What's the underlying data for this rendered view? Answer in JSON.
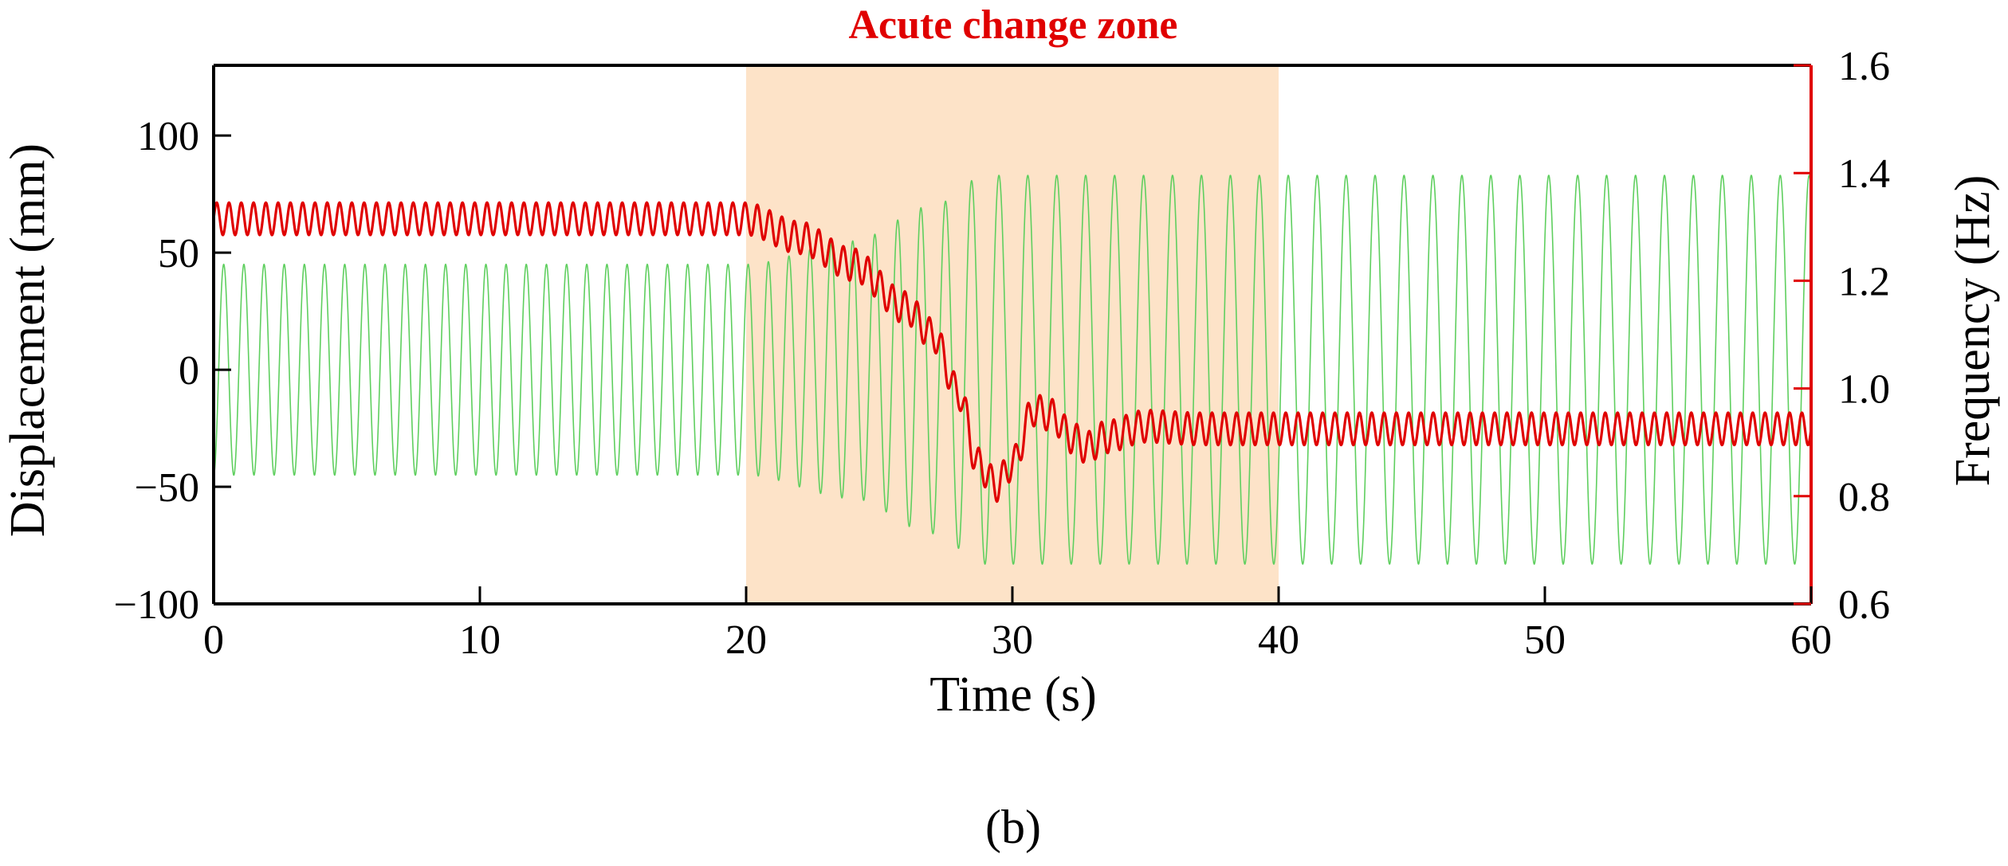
{
  "chart_data": {
    "type": "line",
    "xlabel": "Time (s)",
    "ylabel_left": "Displacement (mm)",
    "ylabel_right": "Frequency (Hz)",
    "xlim": [
      0,
      60
    ],
    "ylim_left": [
      -100,
      130
    ],
    "ylim_right": [
      0.6,
      1.6
    ],
    "x_ticks": [
      0,
      10,
      20,
      30,
      40,
      50,
      60
    ],
    "x_tick_labels": [
      "0",
      "10",
      "20",
      "30",
      "40",
      "50",
      "60"
    ],
    "y_left_ticks": [
      -100,
      -50,
      0,
      50,
      100
    ],
    "y_left_tick_labels": [
      "−100",
      "−50",
      "0",
      "50",
      "100"
    ],
    "y_right_ticks": [
      0.6,
      0.8,
      1.0,
      1.2,
      1.4,
      1.6
    ],
    "y_right_tick_labels": [
      "0.6",
      "0.8",
      "1.0",
      "1.2",
      "1.4",
      "1.6"
    ],
    "shaded_region": {
      "x_start": 20,
      "x_end": 40,
      "label": "Acute change zone",
      "color": "#fde3c8"
    },
    "panel_label": "(b)",
    "series": [
      {
        "name": "Displacement",
        "axis": "left",
        "color": "#5fcf5f",
        "kind": "sinusoid",
        "amplitude_points": [
          [
            0,
            45
          ],
          [
            20,
            45
          ],
          [
            24,
            55
          ],
          [
            27,
            70
          ],
          [
            29,
            83
          ],
          [
            60,
            83
          ]
        ],
        "frequency_points": [
          [
            0,
            1.32
          ],
          [
            20,
            1.32
          ],
          [
            23,
            1.25
          ],
          [
            26,
            1.15
          ],
          [
            28,
            1.02
          ],
          [
            30,
            0.92
          ],
          [
            60,
            0.92
          ]
        ]
      },
      {
        "name": "Frequency",
        "axis": "right",
        "color": "#e00000",
        "kind": "trend_with_ripple",
        "trend_points": [
          [
            0,
            1.315
          ],
          [
            20,
            1.315
          ],
          [
            22,
            1.28
          ],
          [
            24,
            1.23
          ],
          [
            26,
            1.15
          ],
          [
            27,
            1.1
          ],
          [
            28,
            0.99
          ],
          [
            28.7,
            0.86
          ],
          [
            29.4,
            0.82
          ],
          [
            30,
            0.86
          ],
          [
            30.8,
            0.96
          ],
          [
            31.5,
            0.95
          ],
          [
            32.2,
            0.91
          ],
          [
            32.8,
            0.89
          ],
          [
            33.5,
            0.91
          ],
          [
            35,
            0.93
          ],
          [
            37,
            0.925
          ],
          [
            60,
            0.925
          ]
        ],
        "ripple_amplitude_hz": 0.03,
        "ripple_count": 130
      }
    ]
  }
}
